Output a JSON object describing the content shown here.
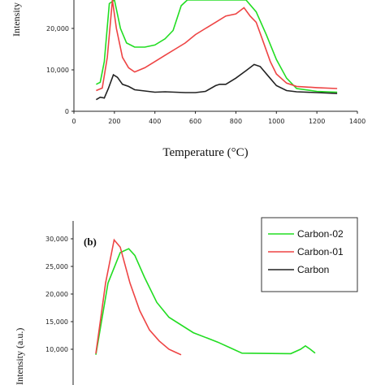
{
  "chart_data": [
    {
      "panel": "a",
      "type": "line",
      "xlabel": "Temperature (°C)",
      "ylabel": "Intensity",
      "xlim": [
        0,
        1400
      ],
      "ylim": [
        0,
        30000
      ],
      "xticks": [
        "0",
        "200",
        "400",
        "600",
        "800",
        "1000",
        "1200",
        "1400"
      ],
      "yticks": [
        "0",
        "10,000",
        "20,000"
      ],
      "series": [
        {
          "name": "Carbon-02",
          "color": "#22dd22",
          "points": [
            [
              110,
              6500
            ],
            [
              130,
              7000
            ],
            [
              150,
              12000
            ],
            [
              175,
              26000
            ],
            [
              200,
              30500
            ],
            [
              230,
              20000
            ],
            [
              260,
              16500
            ],
            [
              300,
              15500
            ],
            [
              350,
              15500
            ],
            [
              400,
              16000
            ],
            [
              450,
              17500
            ],
            [
              490,
              19500
            ],
            [
              510,
              22500
            ],
            [
              530,
              25500
            ],
            [
              560,
              27500
            ],
            [
              600,
              29000
            ],
            [
              650,
              31000
            ],
            [
              700,
              33000
            ],
            [
              750,
              33000
            ],
            [
              800,
              31000
            ],
            [
              850,
              29000
            ],
            [
              900,
              24000
            ],
            [
              950,
              18500
            ],
            [
              1000,
              12500
            ],
            [
              1050,
              8000
            ],
            [
              1100,
              5500
            ],
            [
              1200,
              4800
            ],
            [
              1300,
              4600
            ]
          ]
        },
        {
          "name": "Carbon-01",
          "color": "#ee4444",
          "points": [
            [
              110,
              5000
            ],
            [
              140,
              5600
            ],
            [
              165,
              13000
            ],
            [
              190,
              27000
            ],
            [
              210,
              20000
            ],
            [
              240,
              13000
            ],
            [
              270,
              10500
            ],
            [
              300,
              9500
            ],
            [
              350,
              10500
            ],
            [
              400,
              12000
            ],
            [
              450,
              13500
            ],
            [
              500,
              15000
            ],
            [
              550,
              16500
            ],
            [
              600,
              18500
            ],
            [
              650,
              20000
            ],
            [
              700,
              21500
            ],
            [
              750,
              23000
            ],
            [
              800,
              23500
            ],
            [
              840,
              25000
            ],
            [
              870,
              23000
            ],
            [
              900,
              21500
            ],
            [
              930,
              17500
            ],
            [
              970,
              12000
            ],
            [
              1000,
              9000
            ],
            [
              1050,
              6800
            ],
            [
              1100,
              6000
            ],
            [
              1200,
              5700
            ],
            [
              1300,
              5500
            ]
          ]
        },
        {
          "name": "Carbon",
          "color": "#222222",
          "points": [
            [
              110,
              2800
            ],
            [
              130,
              3400
            ],
            [
              150,
              3200
            ],
            [
              170,
              5500
            ],
            [
              195,
              8800
            ],
            [
              215,
              8200
            ],
            [
              240,
              6500
            ],
            [
              270,
              6000
            ],
            [
              300,
              5200
            ],
            [
              350,
              4900
            ],
            [
              400,
              4600
            ],
            [
              450,
              4700
            ],
            [
              500,
              4600
            ],
            [
              550,
              4500
            ],
            [
              600,
              4500
            ],
            [
              650,
              4800
            ],
            [
              700,
              6200
            ],
            [
              720,
              6500
            ],
            [
              750,
              6500
            ],
            [
              800,
              8000
            ],
            [
              850,
              9800
            ],
            [
              890,
              11300
            ],
            [
              920,
              10800
            ],
            [
              960,
              8500
            ],
            [
              1000,
              6200
            ],
            [
              1050,
              5000
            ],
            [
              1100,
              4700
            ],
            [
              1200,
              4500
            ],
            [
              1300,
              4300
            ]
          ]
        }
      ]
    },
    {
      "panel": "b",
      "type": "line",
      "ylabel": "Intensity (a.u.)",
      "label": "(b)",
      "ylim": [
        10000,
        30000
      ],
      "yticks": [
        "10,000",
        "15,000",
        "20,000",
        "25,000",
        "30,000"
      ],
      "legend": [
        "Carbon-02",
        "Carbon-01",
        "Carbon"
      ],
      "legend_position": "top-right",
      "series": [
        {
          "name": "Carbon-02",
          "color": "#22dd22",
          "points": [
            [
              0.0,
              9000
            ],
            [
              0.05,
              22000
            ],
            [
              0.1,
              27500
            ],
            [
              0.135,
              28200
            ],
            [
              0.16,
              27000
            ],
            [
              0.2,
              23000
            ],
            [
              0.25,
              18500
            ],
            [
              0.3,
              15800
            ],
            [
              0.4,
              13000
            ],
            [
              0.5,
              11300
            ],
            [
              0.55,
              10300
            ],
            [
              0.6,
              9300
            ],
            [
              0.8,
              9200
            ],
            [
              0.84,
              10000
            ],
            [
              0.86,
              10600
            ],
            [
              0.88,
              10000
            ],
            [
              0.9,
              9300
            ]
          ]
        },
        {
          "name": "Carbon-01",
          "color": "#ee4444",
          "points": [
            [
              0.0,
              9200
            ],
            [
              0.04,
              22000
            ],
            [
              0.075,
              29800
            ],
            [
              0.1,
              28500
            ],
            [
              0.14,
              22000
            ],
            [
              0.18,
              17000
            ],
            [
              0.22,
              13500
            ],
            [
              0.26,
              11500
            ],
            [
              0.3,
              10000
            ],
            [
              0.33,
              9400
            ],
            [
              0.35,
              9000
            ]
          ]
        },
        {
          "name": "Carbon",
          "color": "#222222",
          "points": []
        }
      ]
    }
  ]
}
